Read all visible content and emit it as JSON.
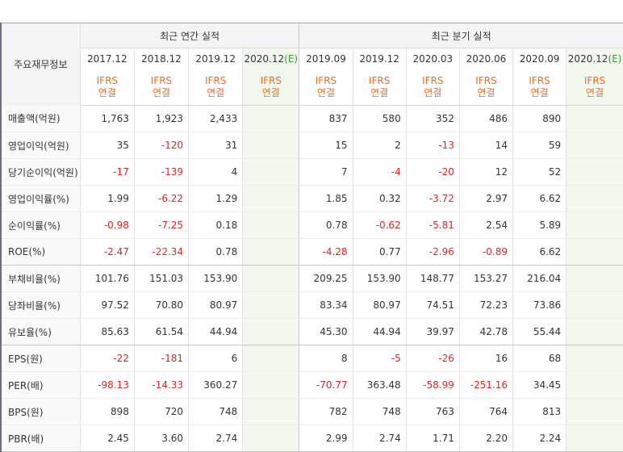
{
  "header": {
    "label": "주요재무정보",
    "annual_group": "최근 연간 실적",
    "quarter_group": "최근 분기 실적",
    "annual_periods": [
      {
        "period": "2017.12",
        "est": ""
      },
      {
        "period": "2018.12",
        "est": ""
      },
      {
        "period": "2019.12",
        "est": ""
      },
      {
        "period": "2020.12",
        "est": "(E)"
      }
    ],
    "quarter_periods": [
      {
        "period": "2019.09",
        "est": ""
      },
      {
        "period": "2019.12",
        "est": ""
      },
      {
        "period": "2020.03",
        "est": ""
      },
      {
        "period": "2020.06",
        "est": ""
      },
      {
        "period": "2020.09",
        "est": ""
      },
      {
        "period": "2020.12",
        "est": "(E)"
      }
    ],
    "basis_line1": "IFRS",
    "basis_line2": "연결"
  },
  "rows": [
    {
      "label": "매출액(억원)",
      "annual": [
        "1,763",
        "1,923",
        "2,433",
        ""
      ],
      "quarter": [
        "837",
        "580",
        "352",
        "486",
        "890",
        ""
      ]
    },
    {
      "label": "영업이익(억원)",
      "annual": [
        "35",
        "-120",
        "31",
        ""
      ],
      "quarter": [
        "15",
        "2",
        "-13",
        "14",
        "59",
        ""
      ]
    },
    {
      "label": "당기순이익(억원)",
      "annual": [
        "-17",
        "-139",
        "4",
        ""
      ],
      "quarter": [
        "7",
        "-4",
        "-20",
        "12",
        "52",
        ""
      ]
    },
    {
      "label": "영업이익률(%)",
      "annual": [
        "1.99",
        "-6.22",
        "1.29",
        ""
      ],
      "quarter": [
        "1.85",
        "0.32",
        "-3.72",
        "2.97",
        "6.62",
        ""
      ]
    },
    {
      "label": "순이익률(%)",
      "annual": [
        "-0.98",
        "-7.25",
        "0.18",
        ""
      ],
      "quarter": [
        "0.78",
        "-0.62",
        "-5.81",
        "2.54",
        "5.89",
        ""
      ]
    },
    {
      "label": "ROE(%)",
      "annual": [
        "-2.47",
        "-22.34",
        "0.78",
        ""
      ],
      "quarter": [
        "-4.28",
        "0.77",
        "-2.96",
        "-0.89",
        "6.62",
        ""
      ]
    },
    {
      "label": "부채비율(%)",
      "annual": [
        "101.76",
        "151.03",
        "153.90",
        ""
      ],
      "quarter": [
        "209.25",
        "153.90",
        "148.77",
        "153.27",
        "216.04",
        ""
      ]
    },
    {
      "label": "당좌비율(%)",
      "annual": [
        "97.52",
        "70.80",
        "80.97",
        ""
      ],
      "quarter": [
        "83.34",
        "80.97",
        "74.51",
        "72.23",
        "73.86",
        ""
      ]
    },
    {
      "label": "유보율(%)",
      "annual": [
        "85.63",
        "61.54",
        "44.94",
        ""
      ],
      "quarter": [
        "45.30",
        "44.94",
        "39.97",
        "42.78",
        "55.44",
        ""
      ]
    },
    {
      "label": "EPS(원)",
      "annual": [
        "-22",
        "-181",
        "6",
        ""
      ],
      "quarter": [
        "8",
        "-5",
        "-26",
        "16",
        "68",
        ""
      ]
    },
    {
      "label": "PER(배)",
      "annual": [
        "-98.13",
        "-14.33",
        "360.27",
        ""
      ],
      "quarter": [
        "-70.77",
        "363.48",
        "-58.99",
        "-251.16",
        "34.45",
        ""
      ]
    },
    {
      "label": "BPS(원)",
      "annual": [
        "898",
        "720",
        "748",
        ""
      ],
      "quarter": [
        "782",
        "748",
        "763",
        "764",
        "813",
        ""
      ]
    },
    {
      "label": "PBR(배)",
      "annual": [
        "2.45",
        "3.60",
        "2.74",
        ""
      ],
      "quarter": [
        "2.99",
        "2.74",
        "1.71",
        "2.20",
        "2.24",
        ""
      ]
    }
  ],
  "group_end_rows": [
    5,
    8,
    12
  ],
  "colors": {
    "negative": "#e02222",
    "basis": "#f06a1c",
    "estimate_bg": "#f2f8ee",
    "estimate_mark": "#3a9a3a"
  }
}
